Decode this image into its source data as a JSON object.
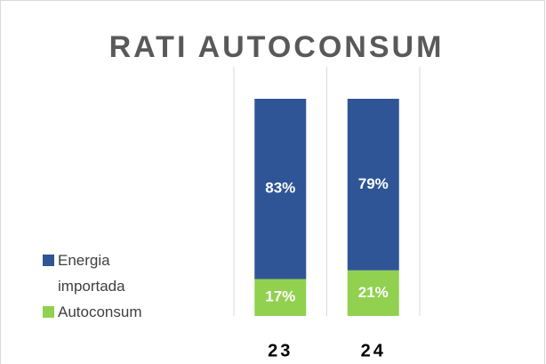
{
  "chart_data": {
    "type": "stacked_bar",
    "title": "RATI AUTOCONSUM",
    "categories": [
      "23",
      "24"
    ],
    "series": [
      {
        "name": "Energia importada",
        "color": "#2f5597",
        "values": [
          83,
          79
        ],
        "value_labels": [
          "83%",
          "79%"
        ]
      },
      {
        "name": "Autoconsum",
        "color": "#92d050",
        "values": [
          17,
          21
        ],
        "value_labels": [
          "17%",
          "21%"
        ]
      }
    ],
    "ylim": [
      0,
      100
    ],
    "legend": "left"
  }
}
